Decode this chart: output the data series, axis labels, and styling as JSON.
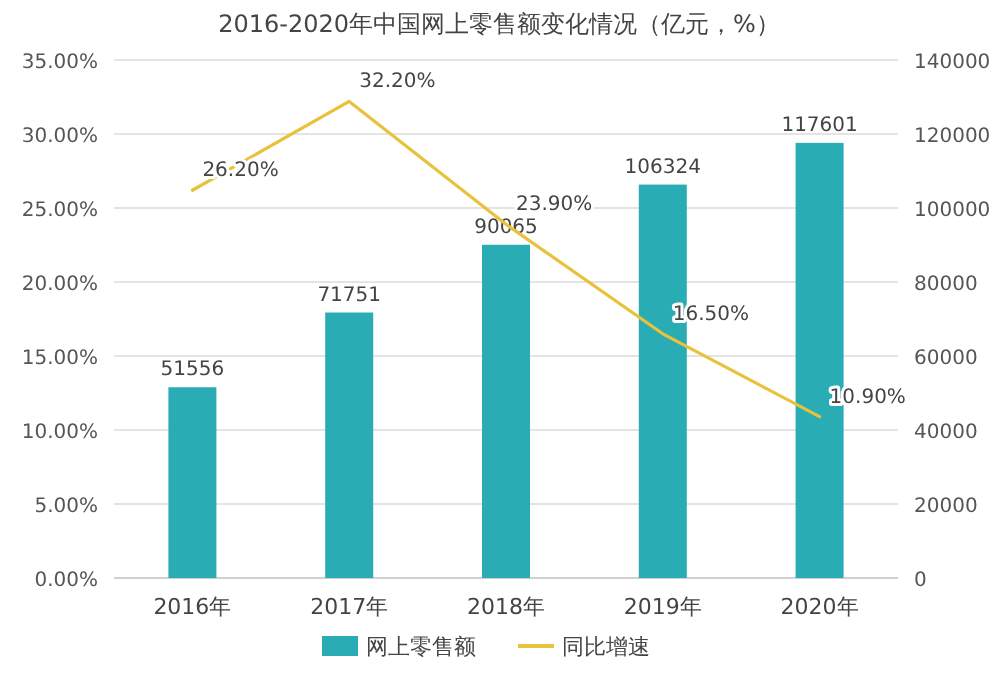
{
  "chart_data": {
    "type": "bar",
    "title": "2016-2020年中国网上零售额变化情况（亿元，%）",
    "categories": [
      "2016年",
      "2017年",
      "2018年",
      "2019年",
      "2020年"
    ],
    "series": [
      {
        "name": "网上零售额",
        "axis": "y2",
        "color": "#2aacb5",
        "values": [
          51556,
          71751,
          90065,
          106324,
          117601
        ],
        "value_labels": [
          "51556",
          "71751",
          "90065",
          "106324",
          "117601"
        ]
      },
      {
        "name": "同比增速",
        "type": "line",
        "axis": "y",
        "color": "#e8c23a",
        "values": [
          26.2,
          32.2,
          23.9,
          16.5,
          10.9
        ],
        "value_labels": [
          "26.20%",
          "32.20%",
          "23.90%",
          "16.50%",
          "10.90%"
        ]
      }
    ],
    "ylim": [
      0,
      35
    ],
    "yticks": [
      {
        "value": 0,
        "label": "0.00%"
      },
      {
        "value": 5,
        "label": "5.00%"
      },
      {
        "value": 10,
        "label": "10.00%"
      },
      {
        "value": 15,
        "label": "15.00%"
      },
      {
        "value": 20,
        "label": "20.00%"
      },
      {
        "value": 25,
        "label": "25.00%"
      },
      {
        "value": 30,
        "label": "30.00%"
      },
      {
        "value": 35,
        "label": "35.00%"
      }
    ],
    "y2lim": [
      0,
      140000
    ],
    "y2ticks": [
      0,
      20000,
      40000,
      60000,
      80000,
      100000,
      120000,
      140000
    ],
    "grid": "y",
    "legend": "bottom",
    "marker": "none",
    "line_style": "solid"
  }
}
